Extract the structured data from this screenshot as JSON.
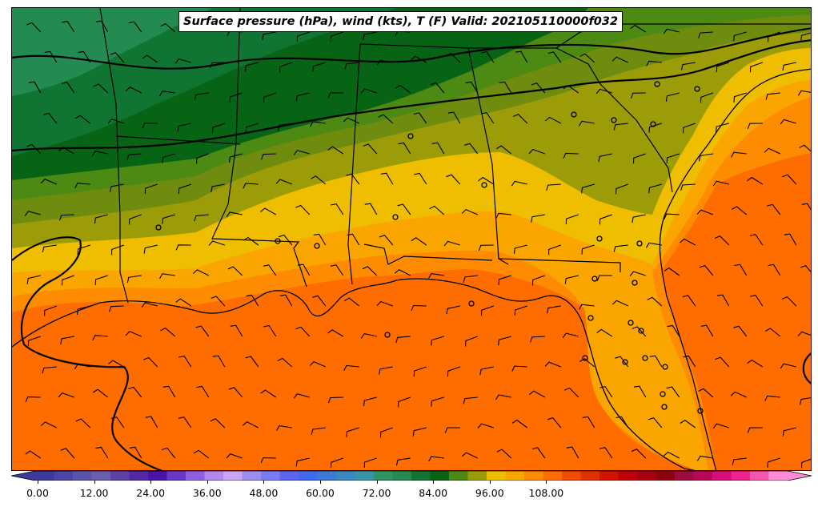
{
  "map": {
    "title": "Surface pressure (hPa), wind (kts), T (F) Valid: 202105110000f032",
    "colors": {
      "t_40s": "#2e9466",
      "t_50": "#238a52",
      "t_55": "#107532",
      "t_58": "#066414",
      "t_60": "#4c8a14",
      "t_63": "#6f8c0e",
      "t_66": "#9c9c08",
      "t_69": "#efbe00",
      "t_72": "#fba600",
      "t_75": "#ff8c00",
      "t_78": "#ff6c00",
      "t_81": "#f24c00",
      "boundary": "#000000"
    },
    "features": [
      "state-boundaries",
      "coastline",
      "isobars",
      "wind-barbs",
      "station-circles"
    ]
  },
  "colorbar": {
    "extend": "both",
    "colors": [
      "#3d3a9e",
      "#4844a8",
      "#5a52ad",
      "#6a5eb0",
      "#5c40a8",
      "#5228a6",
      "#4a12a6",
      "#6a36c8",
      "#8d5ee0",
      "#b288f0",
      "#c9a3f5",
      "#9a8ef2",
      "#7a7cf5",
      "#5a66f0",
      "#3e6af0",
      "#3b7ad6",
      "#3789c0",
      "#3596aa",
      "#2e9466",
      "#238a52",
      "#107532",
      "#066414",
      "#4c8a14",
      "#9c9c08",
      "#efbe00",
      "#fba600",
      "#ff8c00",
      "#ff6c00",
      "#f24c00",
      "#e23000",
      "#d41200",
      "#c00006",
      "#a8000c",
      "#8c0010",
      "#9c0c3c",
      "#b8085a",
      "#d80c78",
      "#f0228e",
      "#f655b0",
      "#ff8bd6"
    ],
    "ticks": [
      "0.00",
      "12.00",
      "24.00",
      "36.00",
      "48.00",
      "60.00",
      "72.00",
      "84.00",
      "96.00",
      "108.00"
    ]
  }
}
